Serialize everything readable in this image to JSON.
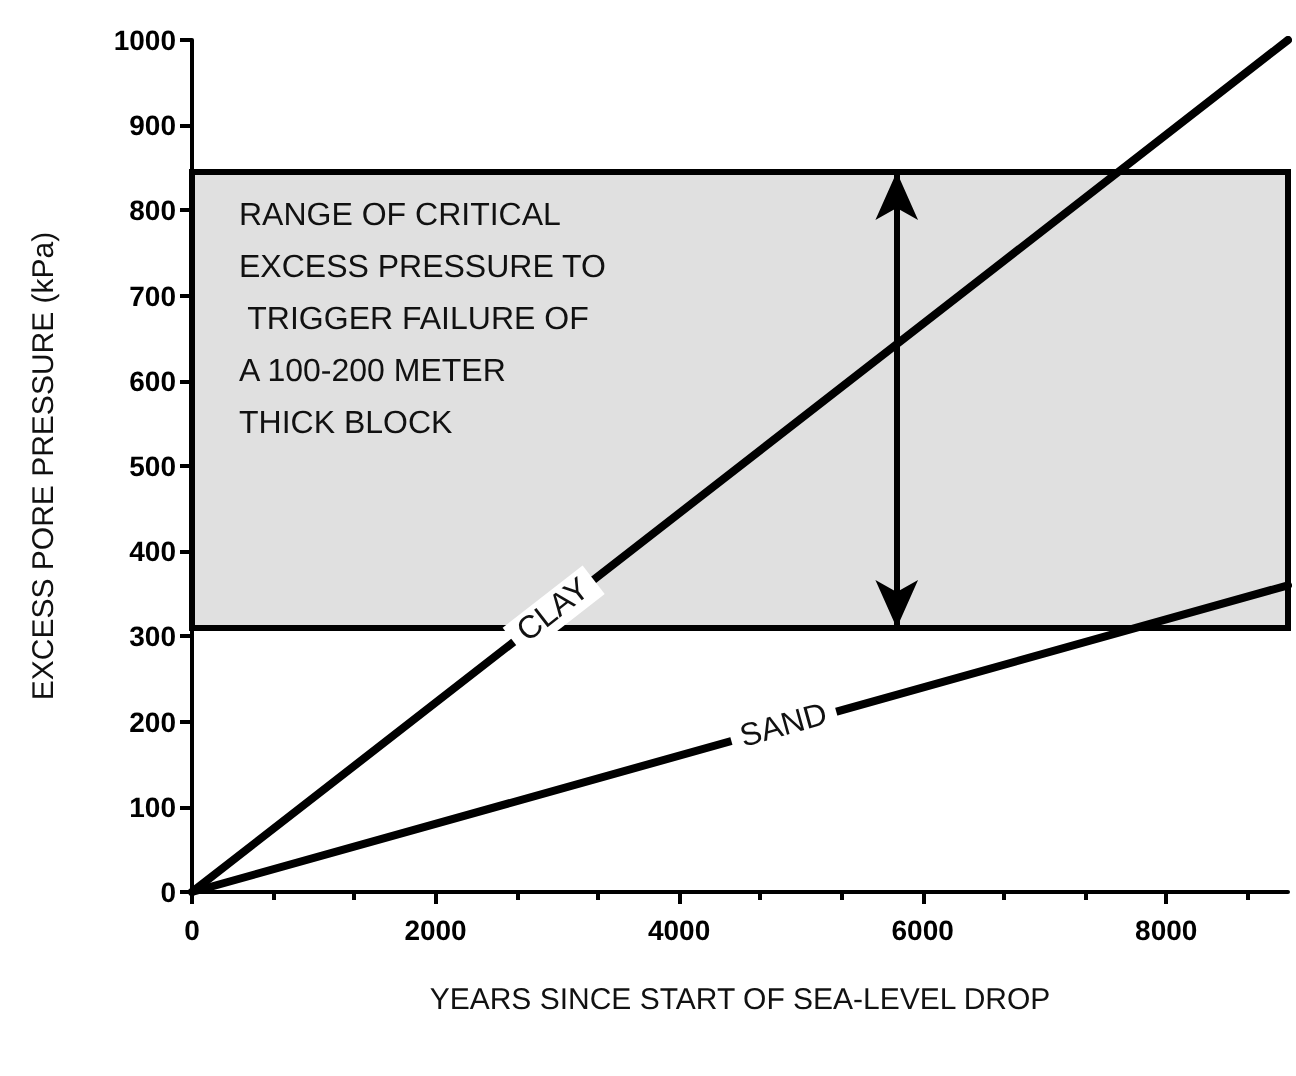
{
  "chart_data": {
    "type": "line",
    "xlabel": "YEARS SINCE START OF SEA-LEVEL DROP",
    "ylabel": "EXCESS PORE PRESSURE (kPa)",
    "x": [
      0,
      9000
    ],
    "series": [
      {
        "name": "CLAY",
        "color": "#000000",
        "values": [
          0,
          1000
        ]
      },
      {
        "name": "SAND",
        "color": "#000000",
        "values": [
          0,
          360
        ]
      }
    ],
    "xlim": [
      0,
      9000
    ],
    "xticks": [
      0,
      2000,
      4000,
      6000,
      8000
    ],
    "ylim": [
      0,
      1000
    ],
    "yticks": [
      0,
      100,
      200,
      300,
      400,
      500,
      600,
      700,
      800,
      900,
      1000
    ],
    "bands": [
      {
        "axis": "y",
        "from": 310,
        "to": 845,
        "label": "RANGE OF CRITICAL EXCESS PRESSURE TO TRIGGER FAILURE OF A 100-200 METER THICK BLOCK",
        "color": "#e0e0e0"
      }
    ],
    "grid": false,
    "legend": false,
    "marker": "none",
    "line_style": "solid"
  }
}
